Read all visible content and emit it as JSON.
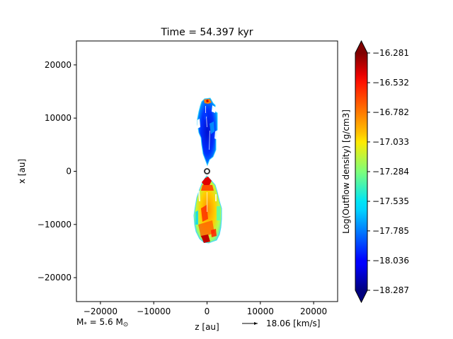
{
  "chart_data": {
    "type": "heatmap",
    "title": "Time = 54.397 kyr",
    "xlabel": "z [au]",
    "ylabel": "x [au]",
    "xlim": [
      -24500,
      24500
    ],
    "ylim": [
      -24500,
      24500
    ],
    "xticks": [
      -20000,
      -10000,
      0,
      10000,
      20000
    ],
    "xtick_labels": [
      "−20000",
      "−10000",
      "0",
      "10000",
      "20000"
    ],
    "yticks": [
      20000,
      10000,
      0,
      -10000,
      -20000
    ],
    "ytick_labels": [
      "20000",
      "10000",
      "0",
      "−10000",
      "−20000"
    ],
    "grid": false,
    "colorbar": {
      "label": "Log(Outflow density) [g/cm3]",
      "min": -18.287,
      "max": -16.281,
      "ticks": [
        -16.281,
        -16.532,
        -16.782,
        -17.033,
        -17.284,
        -17.535,
        -17.785,
        -18.036,
        -18.287
      ],
      "tick_labels": [
        "−16.281",
        "−16.532",
        "−16.782",
        "−17.033",
        "−17.284",
        "−17.535",
        "−17.785",
        "−18.036",
        "−18.287"
      ],
      "colormap": "jet",
      "extend": "both"
    },
    "lobes": [
      {
        "name": "upper",
        "z_range": [
          -1500,
          2000
        ],
        "x_range": [
          1500,
          13500
        ],
        "density_log": -18.2
      },
      {
        "name": "lower",
        "z_range": [
          -2300,
          2400
        ],
        "x_range": [
          -13500,
          -1000
        ],
        "density_log": -16.9
      }
    ],
    "star_position": [
      0,
      0
    ],
    "annotations": {
      "mass": "M* = 5.6 M⊙",
      "mass_prefix": "M",
      "mass_sub": "*",
      "mass_mid": " = 5.6 M",
      "mass_sub2": "⊙",
      "velocity_key": "18.06 [km/s]"
    }
  }
}
